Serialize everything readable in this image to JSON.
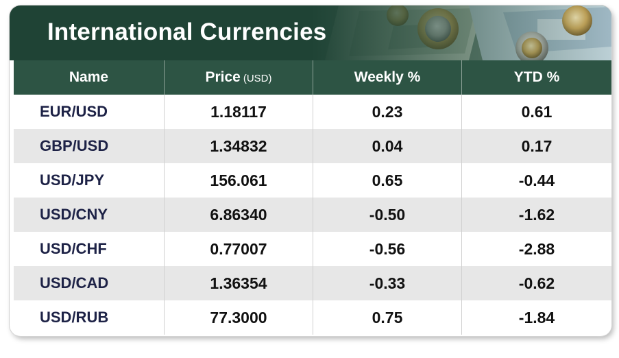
{
  "table": {
    "title": "International Currencies",
    "columns": {
      "name": "Name",
      "price": "Price",
      "price_unit": "(USD)",
      "weekly": "Weekly %",
      "ytd": "YTD %"
    },
    "rows": [
      {
        "name": "EUR/USD",
        "price": "1.18117",
        "weekly": "0.23",
        "ytd": "0.61"
      },
      {
        "name": "GBP/USD",
        "price": "1.34832",
        "weekly": "0.04",
        "ytd": "0.17"
      },
      {
        "name": "USD/JPY",
        "price": "156.061",
        "weekly": "0.65",
        "ytd": "-0.44"
      },
      {
        "name": "USD/CNY",
        "price": "6.86340",
        "weekly": "-0.50",
        "ytd": "-1.62"
      },
      {
        "name": "USD/CHF",
        "price": "0.77007",
        "weekly": "-0.56",
        "ytd": "-2.88"
      },
      {
        "name": "USD/CAD",
        "price": "1.36354",
        "weekly": "-0.33",
        "ytd": "-0.62"
      },
      {
        "name": "USD/RUB",
        "price": "77.3000",
        "weekly": "0.75",
        "ytd": "-1.84"
      }
    ]
  },
  "colors": {
    "banner": "#1f4335",
    "header": "#2d5444",
    "name_text": "#1d2246",
    "stripe": "#e7e7e7"
  },
  "icons": {
    "banner_image": "money-coins-banknotes-photo"
  }
}
